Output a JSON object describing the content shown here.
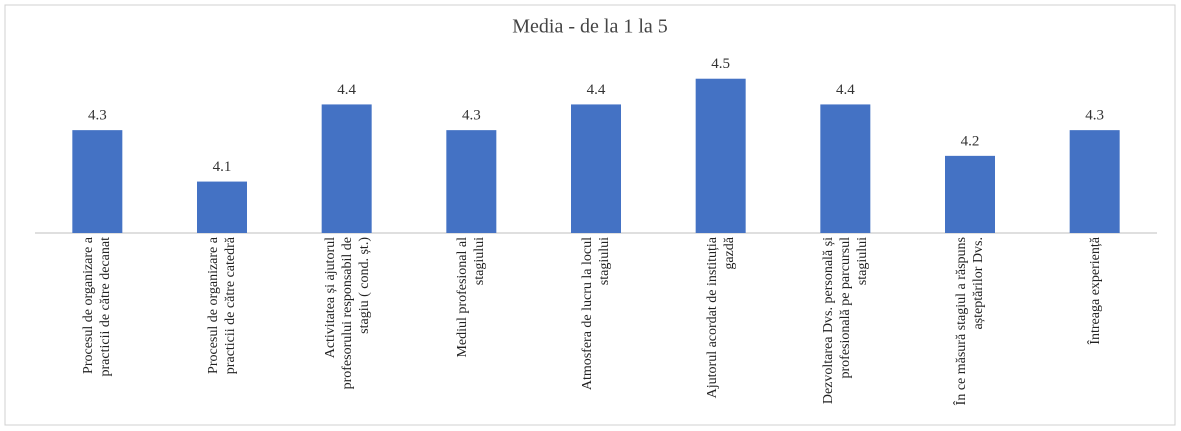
{
  "chart_data": {
    "type": "bar",
    "title": "Media - de la 1 la 5",
    "categories": [
      "Procesul de organizare a practicii de către decanat",
      "Procesul de organizare a practicii de către catedră",
      "Activitatea și ajutorul profesorului responsabil de stagiu ( cond. șt.)",
      "Mediul profesional al stagiului",
      "Atmosfera de lucru la locul stagiului",
      "Ajutorul acordat de instituția gazdă",
      "Dezvoltarea Dvs. personală și profesională pe parcursul stagiului",
      "În ce măsură stagiul a răspuns așteptărilor Dvs.",
      "Întreaga experiență"
    ],
    "values": [
      4.3,
      4.1,
      4.4,
      4.3,
      4.4,
      4.5,
      4.4,
      4.2,
      4.3
    ],
    "color": "#4472c4",
    "ylim": [
      3.9,
      4.6
    ]
  }
}
